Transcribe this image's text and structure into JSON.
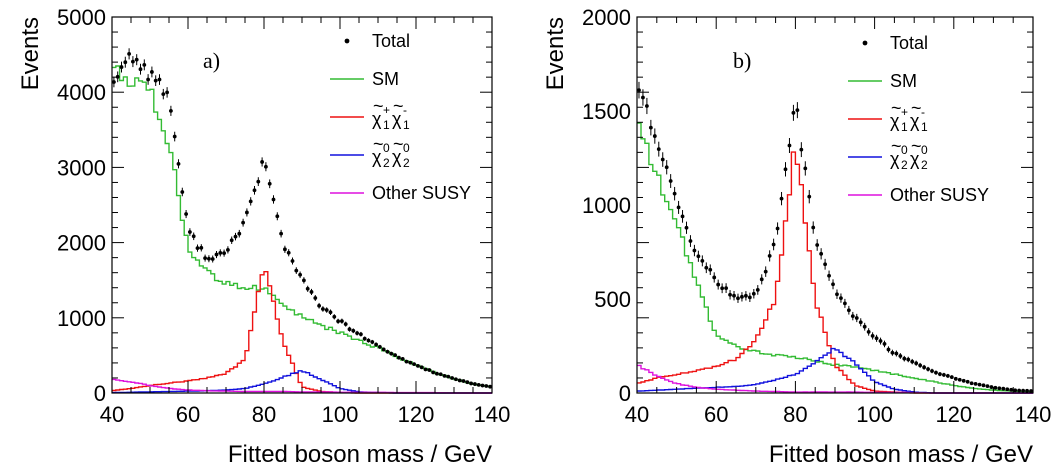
{
  "figure": {
    "panel_count": 2
  },
  "chart_data": [
    {
      "type": "line",
      "panel_label": "a)",
      "xlabel": "Fitted boson mass / GeV",
      "ylabel": "Events",
      "xlim": [
        40,
        140
      ],
      "ylim": [
        0,
        5000
      ],
      "x_ticks": [
        40,
        60,
        80,
        100,
        120,
        140
      ],
      "y_ticks": [
        0,
        1000,
        2000,
        3000,
        4000,
        5000
      ],
      "x_tick_labels": [
        "40",
        "60",
        "80",
        "100",
        "120",
        "140"
      ],
      "y_tick_labels": [
        "0",
        "1000",
        "2000",
        "3000",
        "4000",
        "5000"
      ],
      "grid": false,
      "legend_position": "top-right",
      "legend": [
        {
          "key": "total",
          "label": "Total",
          "marker": "dot"
        },
        {
          "key": "sm",
          "label": "SM",
          "marker": "line"
        },
        {
          "key": "charg",
          "label": "χ̃⁺₁χ̃⁻₁",
          "marker": "line",
          "rich": {
            "base": "χ",
            "sup1": "+",
            "sub1": "1",
            "sup2": "-",
            "sub2": "1"
          }
        },
        {
          "key": "neut",
          "label": "χ̃⁰₂χ̃⁰₂",
          "marker": "line",
          "rich": {
            "base": "χ",
            "sup1": "0",
            "sub1": "2",
            "sup2": "0",
            "sub2": "2"
          }
        },
        {
          "key": "other",
          "label": "Other SUSY",
          "marker": "line"
        }
      ],
      "bin_width": 1,
      "x": [
        40,
        45,
        50,
        55,
        60,
        65,
        70,
        75,
        80,
        85,
        90,
        95,
        100,
        105,
        110,
        115,
        120,
        125,
        130,
        135,
        140
      ],
      "series": [
        {
          "key": "total",
          "name": "Total",
          "color": "#000000",
          "style": "points",
          "values": [
            4150,
            4500,
            4250,
            3950,
            2150,
            1800,
            1850,
            2300,
            3100,
            2000,
            1500,
            1150,
            950,
            780,
            620,
            480,
            370,
            270,
            190,
            120,
            80
          ]
        },
        {
          "key": "sm",
          "name": "SM",
          "color": "#33bb33",
          "style": "step",
          "values": [
            4300,
            4150,
            4000,
            3300,
            1950,
            1600,
            1450,
            1400,
            1400,
            1200,
            1000,
            900,
            800,
            700,
            600,
            480,
            370,
            270,
            190,
            120,
            80
          ]
        },
        {
          "key": "charg",
          "name": "χ̃⁺₁χ̃⁻₁",
          "color": "#ee1111",
          "style": "step",
          "values": [
            30,
            60,
            100,
            130,
            160,
            200,
            260,
            450,
            1700,
            700,
            80,
            20,
            5,
            0,
            0,
            0,
            0,
            0,
            0,
            0,
            0
          ]
        },
        {
          "key": "neut",
          "name": "χ̃⁰₂χ̃⁰₂",
          "color": "#1111dd",
          "style": "step",
          "values": [
            5,
            10,
            15,
            20,
            25,
            30,
            40,
            60,
            120,
            210,
            300,
            180,
            60,
            15,
            5,
            0,
            0,
            0,
            0,
            0,
            0
          ]
        },
        {
          "key": "other",
          "name": "Other SUSY",
          "color": "#dd11dd",
          "style": "step",
          "values": [
            180,
            150,
            100,
            60,
            40,
            30,
            25,
            20,
            20,
            20,
            15,
            15,
            10,
            10,
            10,
            5,
            5,
            5,
            0,
            0,
            0
          ]
        }
      ]
    },
    {
      "type": "line",
      "panel_label": "b)",
      "xlabel": "Fitted boson mass / GeV",
      "ylabel": "Events",
      "xlim": [
        40,
        140
      ],
      "ylim": [
        0,
        2000
      ],
      "x_ticks": [
        40,
        60,
        80,
        100,
        120,
        140
      ],
      "y_ticks": [
        0,
        500,
        1000,
        1500,
        2000
      ],
      "x_tick_labels": [
        "40",
        "60",
        "80",
        "100",
        "120",
        "140"
      ],
      "y_tick_labels": [
        "0",
        "500",
        "1000",
        "1500",
        "2000"
      ],
      "grid": false,
      "legend_position": "top-right",
      "legend": [
        {
          "key": "total",
          "label": "Total",
          "marker": "dot"
        },
        {
          "key": "sm",
          "label": "SM",
          "marker": "line"
        },
        {
          "key": "charg",
          "label": "χ̃⁺₁χ̃⁻₁",
          "marker": "line",
          "rich": {
            "base": "χ",
            "sup1": "+",
            "sub1": "1",
            "sup2": "-",
            "sub2": "1"
          }
        },
        {
          "key": "neut",
          "label": "χ̃⁰₂χ̃⁰₂",
          "marker": "line",
          "rich": {
            "base": "χ",
            "sup1": "0",
            "sub1": "2",
            "sup2": "0",
            "sub2": "2"
          }
        },
        {
          "key": "other",
          "label": "Other SUSY",
          "marker": "line"
        }
      ],
      "bin_width": 1,
      "x": [
        40,
        45,
        50,
        55,
        60,
        65,
        70,
        75,
        80,
        85,
        90,
        95,
        100,
        105,
        110,
        115,
        120,
        125,
        130,
        135,
        140
      ],
      "series": [
        {
          "key": "total",
          "name": "Total",
          "color": "#000000",
          "style": "points",
          "values": [
            1650,
            1350,
            1000,
            750,
            600,
            500,
            520,
            800,
            1550,
            800,
            550,
            400,
            300,
            210,
            160,
            110,
            80,
            50,
            30,
            15,
            10
          ]
        },
        {
          "key": "sm",
          "name": "SM",
          "color": "#33bb33",
          "style": "step",
          "values": [
            1450,
            1150,
            900,
            600,
            300,
            250,
            220,
            200,
            190,
            170,
            150,
            140,
            120,
            100,
            80,
            60,
            40,
            25,
            15,
            10,
            5
          ]
        },
        {
          "key": "charg",
          "name": "χ̃⁺₁χ̃⁻₁",
          "color": "#ee1111",
          "style": "step",
          "values": [
            50,
            80,
            100,
            120,
            140,
            180,
            280,
            500,
            1330,
            500,
            150,
            40,
            10,
            5,
            0,
            0,
            0,
            0,
            0,
            0,
            0
          ]
        },
        {
          "key": "neut",
          "name": "χ̃⁰₂χ̃⁰₂",
          "color": "#1111dd",
          "style": "step",
          "values": [
            10,
            15,
            20,
            25,
            30,
            35,
            45,
            70,
            100,
            160,
            240,
            160,
            60,
            20,
            5,
            0,
            0,
            0,
            0,
            0,
            0
          ]
        },
        {
          "key": "other",
          "name": "Other SUSY",
          "color": "#dd11dd",
          "style": "step",
          "values": [
            150,
            90,
            50,
            30,
            20,
            15,
            10,
            8,
            5,
            5,
            5,
            5,
            3,
            3,
            2,
            0,
            0,
            0,
            0,
            0,
            0
          ]
        }
      ]
    }
  ]
}
